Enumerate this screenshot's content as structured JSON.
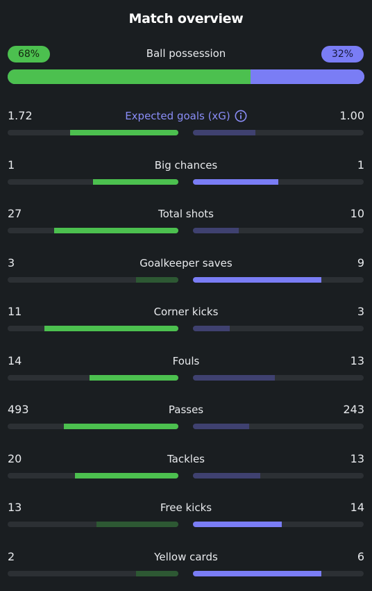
{
  "title": "Match overview",
  "possession": {
    "label": "Ball possession",
    "home": "68%",
    "away": "32%",
    "home_fraction": 0.68,
    "away_fraction": 0.32
  },
  "colors": {
    "home": "#4cc04f",
    "home_dim": "#2d5833",
    "away": "#7a7df5",
    "away_dim": "#3f4170",
    "track": "#2c3034",
    "background": "#1a1e21"
  },
  "stats": [
    {
      "label": "Expected goals (xG)",
      "home": "1.72",
      "away": "1.00",
      "home_value": 1.72,
      "away_value": 1.0,
      "highlight": true,
      "icon": "info-icon"
    },
    {
      "label": "Big chances",
      "home": "1",
      "away": "1",
      "home_value": 1,
      "away_value": 1
    },
    {
      "label": "Total shots",
      "home": "27",
      "away": "10",
      "home_value": 27,
      "away_value": 10
    },
    {
      "label": "Goalkeeper saves",
      "home": "3",
      "away": "9",
      "home_value": 3,
      "away_value": 9
    },
    {
      "label": "Corner kicks",
      "home": "11",
      "away": "3",
      "home_value": 11,
      "away_value": 3
    },
    {
      "label": "Fouls",
      "home": "14",
      "away": "13",
      "home_value": 14,
      "away_value": 13
    },
    {
      "label": "Passes",
      "home": "493",
      "away": "243",
      "home_value": 493,
      "away_value": 243
    },
    {
      "label": "Tackles",
      "home": "20",
      "away": "13",
      "home_value": 20,
      "away_value": 13
    },
    {
      "label": "Free kicks",
      "home": "13",
      "away": "14",
      "home_value": 13,
      "away_value": 14
    },
    {
      "label": "Yellow cards",
      "home": "2",
      "away": "6",
      "home_value": 2,
      "away_value": 6
    }
  ]
}
